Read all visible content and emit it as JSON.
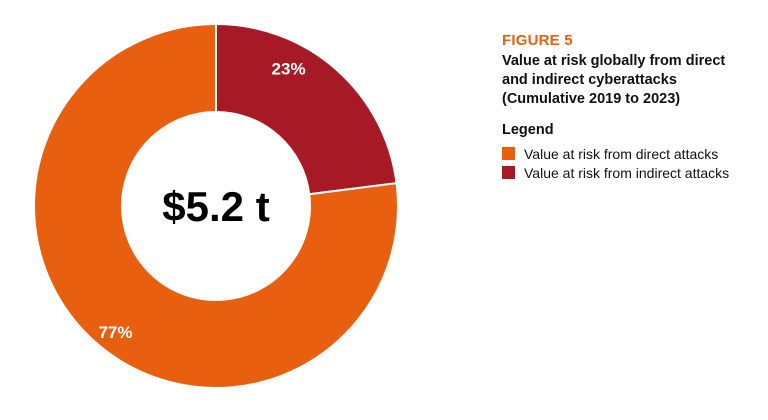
{
  "figure": {
    "label": "FIGURE 5",
    "title_lines": [
      "Value at risk globally from direct",
      "and indirect cyberattacks",
      "(Cumulative 2019 to 2023)"
    ]
  },
  "legend": {
    "title": "Legend",
    "items": [
      {
        "label": "Value at risk from direct attacks",
        "color": "#e8600f"
      },
      {
        "label": "Value at risk from indirect attacks",
        "color": "#a71a25"
      }
    ]
  },
  "chart_data": {
    "type": "pie",
    "style": "donut",
    "center_label": "$5.2 t",
    "series": [
      {
        "name": "Value at risk from direct attacks",
        "value": 77,
        "label": "77%",
        "color": "#e8600f"
      },
      {
        "name": "Value at risk from indirect attacks",
        "value": 23,
        "label": "23%",
        "color": "#a71a25"
      }
    ],
    "legend_position": "right"
  }
}
